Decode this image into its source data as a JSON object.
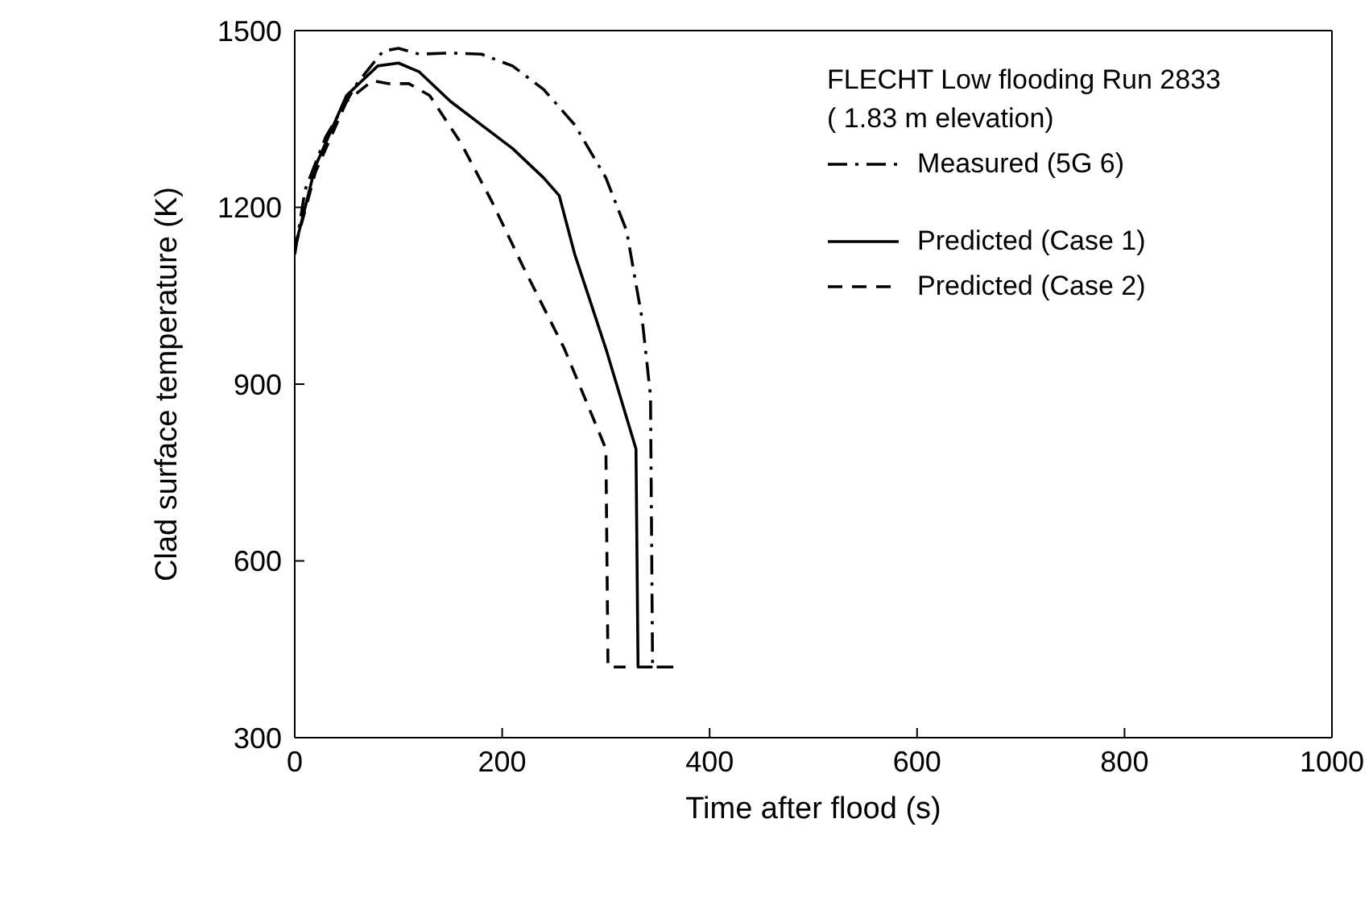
{
  "chart_data": {
    "type": "line",
    "legend_title": "FLECHT Low flooding Run 2833",
    "subtitle": "( 1.83 m elevation)",
    "xlabel": "Time after flood (s)",
    "ylabel": "Clad surface temperature (K)",
    "xlim": [
      0,
      1000
    ],
    "xticks": [
      0,
      200,
      400,
      600,
      800,
      1000
    ],
    "ylim": [
      300,
      1500
    ],
    "yticks": [
      300,
      600,
      900,
      1200,
      1500
    ],
    "grid": false,
    "legend": "top right",
    "marker": "none",
    "series": [
      {
        "name": "Measured (5G 6)",
        "color": "#000000",
        "line_style": "dashdot",
        "x": [
          0,
          10,
          30,
          60,
          85,
          100,
          120,
          150,
          180,
          210,
          240,
          270,
          300,
          320,
          335,
          343,
          345,
          365
        ],
        "values": [
          1120,
          1230,
          1320,
          1410,
          1465,
          1470,
          1460,
          1462,
          1460,
          1440,
          1400,
          1340,
          1250,
          1160,
          1010,
          880,
          420,
          420
        ]
      },
      {
        "name": "Predicted (Case 1)",
        "color": "#000000",
        "line_style": "solid",
        "x": [
          0,
          20,
          50,
          80,
          100,
          120,
          150,
          180,
          210,
          240,
          255,
          270,
          300,
          329,
          331,
          345
        ],
        "values": [
          1130,
          1270,
          1390,
          1440,
          1445,
          1430,
          1380,
          1340,
          1300,
          1250,
          1220,
          1120,
          960,
          790,
          420,
          420
        ]
      },
      {
        "name": "Predicted (Case 2)",
        "color": "#000000",
        "line_style": "dashed",
        "x": [
          0,
          20,
          50,
          75,
          90,
          110,
          130,
          160,
          190,
          220,
          260,
          300,
          302,
          319
        ],
        "values": [
          1130,
          1260,
          1380,
          1415,
          1410,
          1410,
          1390,
          1310,
          1210,
          1100,
          960,
          790,
          420,
          420
        ]
      }
    ]
  }
}
